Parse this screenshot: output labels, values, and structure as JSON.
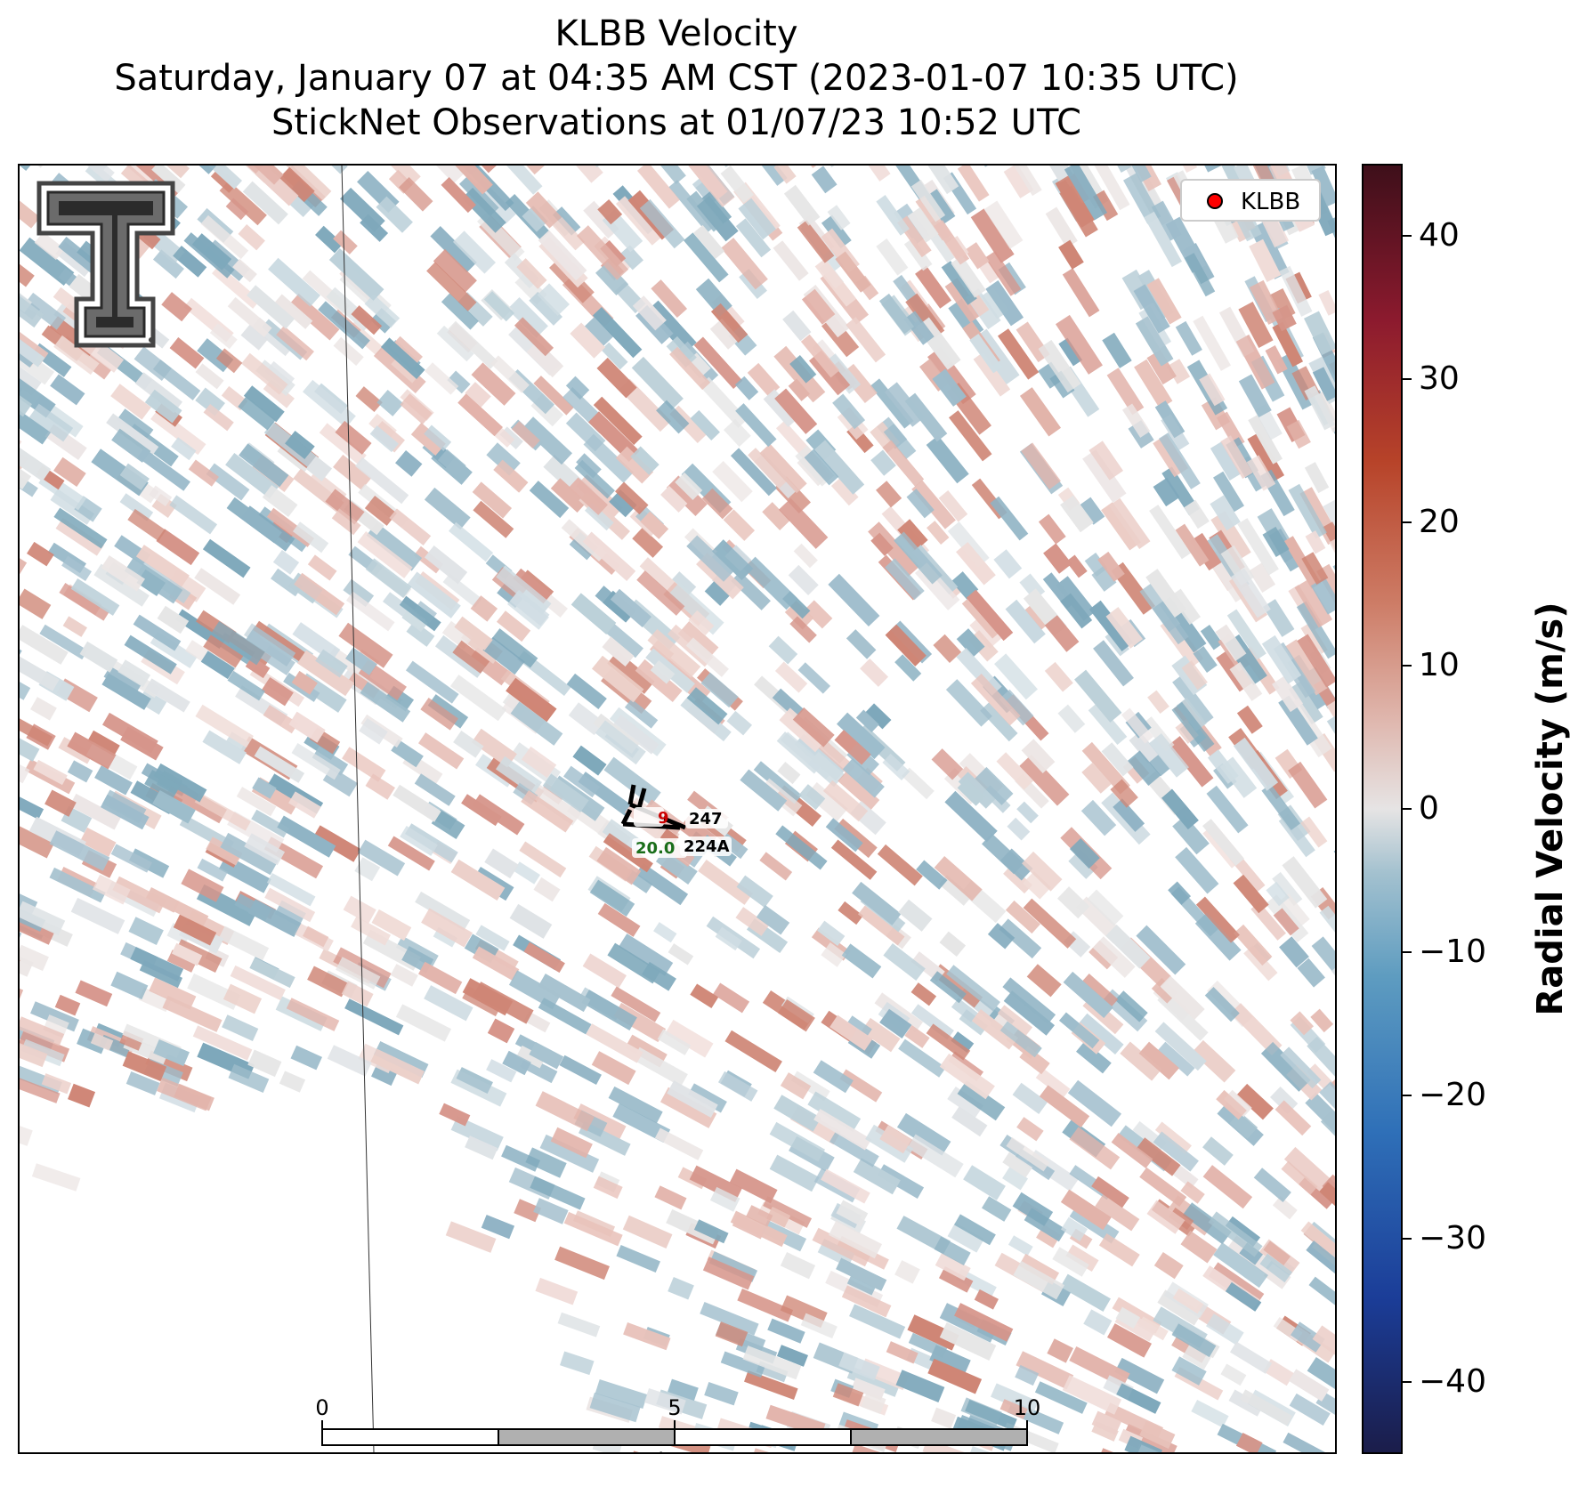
{
  "title": {
    "line1": "KLBB Velocity",
    "line2": "Saturday, January 07 at 04:35 AM CST (2023-01-07 10:35 UTC)",
    "line3": "StickNet Observations at 01/07/23 10:52 UTC"
  },
  "legend": {
    "label": "KLBB",
    "marker_color": "#ff0000",
    "placement": "top-right"
  },
  "colorbar": {
    "label": "Radial Velocity (m/s)",
    "range": [
      -45,
      45
    ],
    "ticks": [
      "40",
      "30",
      "20",
      "10",
      "0",
      "−10",
      "−20",
      "−30",
      "−40"
    ],
    "tick_values": [
      40,
      30,
      20,
      10,
      0,
      -10,
      -20,
      -30,
      -40
    ],
    "colors": {
      "negative": "#1b3d98",
      "neutral": "#e6e4e4",
      "positive": "#b74329"
    }
  },
  "stations": [
    {
      "id": "247",
      "value": "9",
      "value_color": "#cc0000"
    },
    {
      "id": "224A",
      "value": "20.0",
      "value_color": "#1a6e1a"
    }
  ],
  "scale_bar": {
    "unit": "km",
    "labels": [
      "0",
      "5",
      "10"
    ]
  },
  "logo": {
    "name": "texas-tech-double-t-logo"
  }
}
